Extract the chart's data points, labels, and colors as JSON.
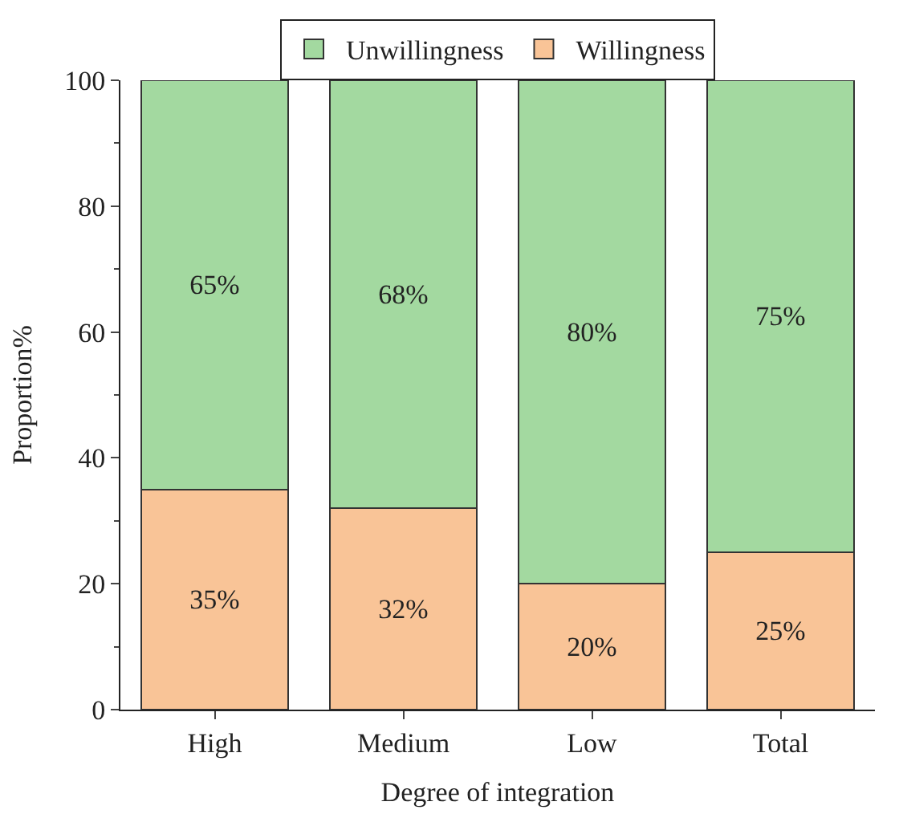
{
  "chart_data": {
    "type": "bar",
    "stacked": true,
    "xlabel": "Degree of integration",
    "ylabel": "Proportion%",
    "categories": [
      "High",
      "Medium",
      "Low",
      "Total"
    ],
    "series": [
      {
        "name": "Willingness",
        "color": "#f9c497",
        "values": [
          35,
          32,
          20,
          25
        ],
        "value_labels": [
          "35%",
          "32%",
          "20%",
          "25%"
        ]
      },
      {
        "name": "Unwillingness",
        "color": "#a3d9a0",
        "values": [
          65,
          68,
          80,
          75
        ],
        "value_labels": [
          "65%",
          "68%",
          "80%",
          "75%"
        ]
      }
    ],
    "ylim": [
      0,
      100
    ],
    "yticks": [
      0,
      20,
      40,
      60,
      80,
      100
    ],
    "legend": "top"
  }
}
